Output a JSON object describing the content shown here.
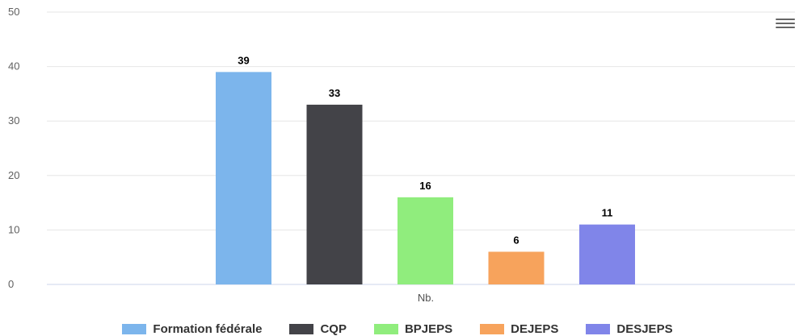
{
  "chart_data": {
    "type": "bar",
    "categories": [
      "Nb."
    ],
    "series": [
      {
        "name": "Formation fédérale",
        "values": [
          39
        ],
        "color": "#7cb5ec"
      },
      {
        "name": "CQP",
        "values": [
          33
        ],
        "color": "#434348"
      },
      {
        "name": "BPJEPS",
        "values": [
          16
        ],
        "color": "#90ed7d"
      },
      {
        "name": "DEJEPS",
        "values": [
          6
        ],
        "color": "#f7a35c"
      },
      {
        "name": "DESJEPS",
        "values": [
          11
        ],
        "color": "#8085e9"
      }
    ],
    "yticks": [
      "0",
      "10",
      "20",
      "30",
      "40",
      "50"
    ],
    "ylim": [
      0,
      50
    ],
    "grid": true,
    "legend_position": "bottom",
    "data_labels": [
      "39",
      "33",
      "16",
      "6",
      "11"
    ],
    "title": "",
    "xlabel": "",
    "ylabel": ""
  },
  "toolbar": {
    "menu_icon": "hamburger-menu-icon"
  }
}
